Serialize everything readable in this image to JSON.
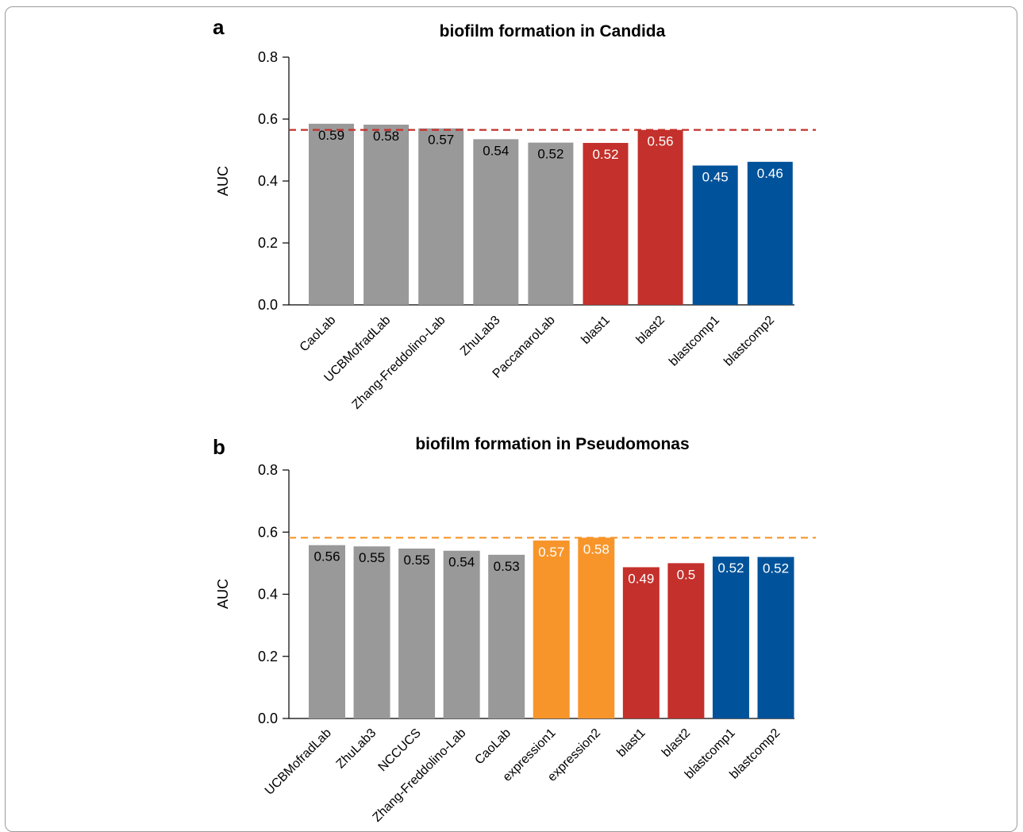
{
  "chart_data": [
    {
      "type": "bar",
      "panel": "a",
      "title": "biofilm formation in Candida",
      "ylabel": "AUC",
      "ylim": [
        0,
        0.8
      ],
      "yticks": [
        "0.0",
        "0.2",
        "0.4",
        "0.6",
        "0.8"
      ],
      "categories": [
        "CaoLab",
        "UCBMofradLab",
        "Zhang-Freddolino-Lab",
        "ZhuLab3",
        "PaccanaroLab",
        "blast1",
        "blast2",
        "blastcomp1",
        "blastcomp2"
      ],
      "values": [
        0.585,
        0.582,
        0.57,
        0.535,
        0.524,
        0.523,
        0.565,
        0.45,
        0.462
      ],
      "value_labels": [
        "0.59",
        "0.58",
        "0.57",
        "0.54",
        "0.52",
        "0.52",
        "0.56",
        "0.45",
        "0.46"
      ],
      "colors": [
        "#999999",
        "#999999",
        "#999999",
        "#999999",
        "#999999",
        "#c4302b",
        "#c4302b",
        "#00539b",
        "#00539b"
      ],
      "label_colors": [
        "#000000",
        "#000000",
        "#000000",
        "#000000",
        "#000000",
        "#ffffff",
        "#ffffff",
        "#ffffff",
        "#ffffff"
      ],
      "reference_line": {
        "value": 0.565,
        "color": "#c4302b",
        "style": "dashed"
      }
    },
    {
      "type": "bar",
      "panel": "b",
      "title": "biofilm formation in Pseudomonas",
      "ylabel": "AUC",
      "ylim": [
        0,
        0.8
      ],
      "yticks": [
        "0.0",
        "0.2",
        "0.4",
        "0.6",
        "0.8"
      ],
      "categories": [
        "UCBMofradLab",
        "ZhuLab3",
        "NCCUCS",
        "Zhang-Freddolino-Lab",
        "CaoLab",
        "expression1",
        "expression2",
        "blast1",
        "blast2",
        "blastcomp1",
        "blastcomp2"
      ],
      "values": [
        0.558,
        0.554,
        0.547,
        0.54,
        0.527,
        0.573,
        0.582,
        0.487,
        0.5,
        0.521,
        0.52
      ],
      "value_labels": [
        "0.56",
        "0.55",
        "0.55",
        "0.54",
        "0.53",
        "0.57",
        "0.58",
        "0.49",
        "0.5",
        "0.52",
        "0.52"
      ],
      "colors": [
        "#999999",
        "#999999",
        "#999999",
        "#999999",
        "#999999",
        "#f7952b",
        "#f7952b",
        "#c4302b",
        "#c4302b",
        "#00539b",
        "#00539b"
      ],
      "label_colors": [
        "#000000",
        "#000000",
        "#000000",
        "#000000",
        "#000000",
        "#ffffff",
        "#ffffff",
        "#ffffff",
        "#ffffff",
        "#ffffff",
        "#ffffff"
      ],
      "reference_line": {
        "value": 0.582,
        "color": "#f7952b",
        "style": "dashed"
      }
    }
  ]
}
